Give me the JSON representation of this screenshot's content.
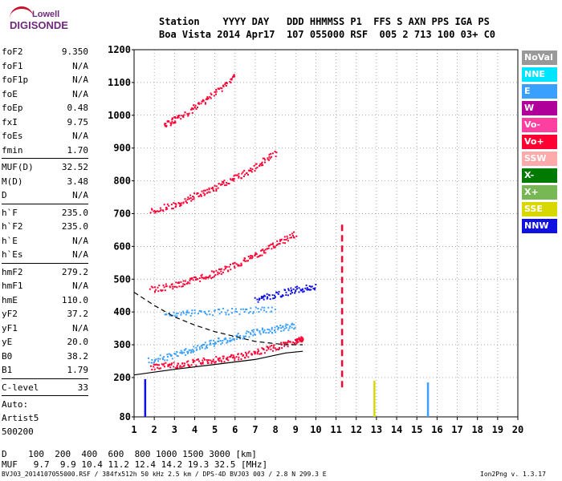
{
  "logo": {
    "line1": "Lowell",
    "line2": "DIGISONDE"
  },
  "header": {
    "row1": "Station    YYYY DAY   DDD HHMMSS P1  FFS S AXN PPS IGA PS",
    "row2": "Boa Vista 2014 Apr17  107 055000 RSF  005 2 713 100 03+ C0"
  },
  "params": [
    {
      "name": "foF2",
      "value": "9.350"
    },
    {
      "name": "foF1",
      "value": "N/A"
    },
    {
      "name": "foF1p",
      "value": "N/A"
    },
    {
      "name": "foE",
      "value": "N/A"
    },
    {
      "name": "foEp",
      "value": "0.48"
    },
    {
      "name": "fxI",
      "value": "9.75"
    },
    {
      "name": "foEs",
      "value": "N/A"
    },
    {
      "name": "fmin",
      "value": "1.70"
    },
    {
      "name": "MUF(D)",
      "value": "32.52"
    },
    {
      "name": "M(D)",
      "value": "3.48"
    },
    {
      "name": "D",
      "value": "N/A"
    },
    {
      "name": "h`F",
      "value": "235.0"
    },
    {
      "name": "h`F2",
      "value": "235.0"
    },
    {
      "name": "h`E",
      "value": "N/A"
    },
    {
      "name": "h`Es",
      "value": "N/A"
    },
    {
      "name": "hmF2",
      "value": "279.2"
    },
    {
      "name": "hmF1",
      "value": "N/A"
    },
    {
      "name": "hmE",
      "value": "110.0"
    },
    {
      "name": "yF2",
      "value": "37.2"
    },
    {
      "name": "yF1",
      "value": "N/A"
    },
    {
      "name": "yE",
      "value": "20.0"
    },
    {
      "name": "B0",
      "value": "38.2"
    },
    {
      "name": "B1",
      "value": "1.79"
    },
    {
      "name": "C-level",
      "value": "33"
    }
  ],
  "auto": {
    "line1": "Auto:",
    "line2": "Artist5",
    "line3": "500200"
  },
  "legend": [
    {
      "label": "NoVal",
      "color": "#999999"
    },
    {
      "label": "NNE",
      "color": "#00e5ff"
    },
    {
      "label": "E",
      "color": "#3aa0ff"
    },
    {
      "label": "W",
      "color": "#b0009a"
    },
    {
      "label": "Vo-",
      "color": "#ff3fa0"
    },
    {
      "label": "Vo+",
      "color": "#ff0033"
    },
    {
      "label": "SSW",
      "color": "#ffaaaa"
    },
    {
      "label": "X-",
      "color": "#007a00"
    },
    {
      "label": "X+",
      "color": "#77b855"
    },
    {
      "label": "SSE",
      "color": "#d8d800"
    },
    {
      "label": "NNW",
      "color": "#1010e0"
    }
  ],
  "footer": {
    "line1": "D    100  200  400  600  800 1000 1500 3000 [km]",
    "line2": "MUF   9.7  9.9 10.4 11.2 12.4 14.2 19.3 32.5 [MHz]",
    "line3": "BVJ03_2014107055000.RSF / 384fx512h 50 kHz 2.5 km / DPS-4D BVJ03 003 / 2.8 N 299.3 E",
    "version": "Ion2Png v. 1.3.17"
  },
  "chart_data": {
    "type": "scatter",
    "xlim": [
      1,
      20
    ],
    "ylim": [
      80,
      1200
    ],
    "x_ticks": [
      1,
      2,
      3,
      4,
      5,
      6,
      7,
      8,
      9,
      10,
      11,
      12,
      13,
      14,
      15,
      16,
      17,
      18,
      19,
      20
    ],
    "y_ticks": [
      80,
      200,
      300,
      400,
      500,
      600,
      700,
      800,
      900,
      1000,
      1100,
      1200
    ],
    "grid": true,
    "legend_position": "right",
    "traces": [
      {
        "color": "#ff0033",
        "points": [
          [
            1.8,
            235
          ],
          [
            3,
            240
          ],
          [
            4,
            248
          ],
          [
            5,
            256
          ],
          [
            6,
            265
          ],
          [
            7,
            278
          ],
          [
            8,
            295
          ],
          [
            9,
            312
          ],
          [
            9.35,
            320
          ]
        ]
      },
      {
        "color": "#ff0033",
        "points": [
          [
            1.8,
            470
          ],
          [
            3,
            484
          ],
          [
            4,
            500
          ],
          [
            5,
            520
          ],
          [
            6,
            545
          ],
          [
            7,
            575
          ],
          [
            8,
            610
          ],
          [
            9,
            640
          ]
        ]
      },
      {
        "color": "#ff0033",
        "points": [
          [
            1.8,
            710
          ],
          [
            3,
            730
          ],
          [
            4,
            755
          ],
          [
            5,
            780
          ],
          [
            6,
            810
          ],
          [
            7,
            845
          ],
          [
            8,
            890
          ]
        ]
      },
      {
        "color": "#ff0033",
        "points": [
          [
            2.5,
            970
          ],
          [
            3,
            990
          ],
          [
            4,
            1025
          ],
          [
            5,
            1070
          ],
          [
            6,
            1120
          ]
        ]
      },
      {
        "color": "#3aa0ff",
        "points": [
          [
            1.7,
            255
          ],
          [
            3,
            270
          ],
          [
            4,
            290
          ],
          [
            5,
            310
          ],
          [
            6,
            325
          ],
          [
            7,
            340
          ],
          [
            8,
            350
          ],
          [
            9,
            360
          ]
        ]
      },
      {
        "color": "#3aa0ff",
        "points": [
          [
            2.5,
            395
          ],
          [
            4,
            400
          ],
          [
            6,
            405
          ],
          [
            8,
            410
          ]
        ]
      },
      {
        "color": "#1010e0",
        "points": [
          [
            7,
            440
          ],
          [
            8,
            455
          ],
          [
            9,
            470
          ],
          [
            10,
            480
          ]
        ]
      }
    ],
    "profile_solid": [
      [
        1,
        208
      ],
      [
        3,
        225
      ],
      [
        5,
        240
      ],
      [
        7,
        255
      ],
      [
        8.5,
        275
      ],
      [
        9.35,
        280
      ]
    ],
    "profile_dashed": [
      [
        1,
        460
      ],
      [
        2,
        420
      ],
      [
        3,
        385
      ],
      [
        4,
        360
      ],
      [
        5,
        340
      ],
      [
        6,
        325
      ],
      [
        7,
        310
      ],
      [
        8.5,
        300
      ],
      [
        9.35,
        300
      ]
    ],
    "verticals": [
      {
        "x": 11.3,
        "y0": 170,
        "y1": 670,
        "color": "#ff0033"
      },
      {
        "x": 1.55,
        "y0": 80,
        "y1": 195,
        "color": "#1010e0"
      },
      {
        "x": 15.55,
        "y0": 80,
        "y1": 185,
        "color": "#3aa0ff"
      },
      {
        "x": 12.9,
        "y0": 80,
        "y1": 190,
        "color": "#d8d800"
      }
    ]
  }
}
